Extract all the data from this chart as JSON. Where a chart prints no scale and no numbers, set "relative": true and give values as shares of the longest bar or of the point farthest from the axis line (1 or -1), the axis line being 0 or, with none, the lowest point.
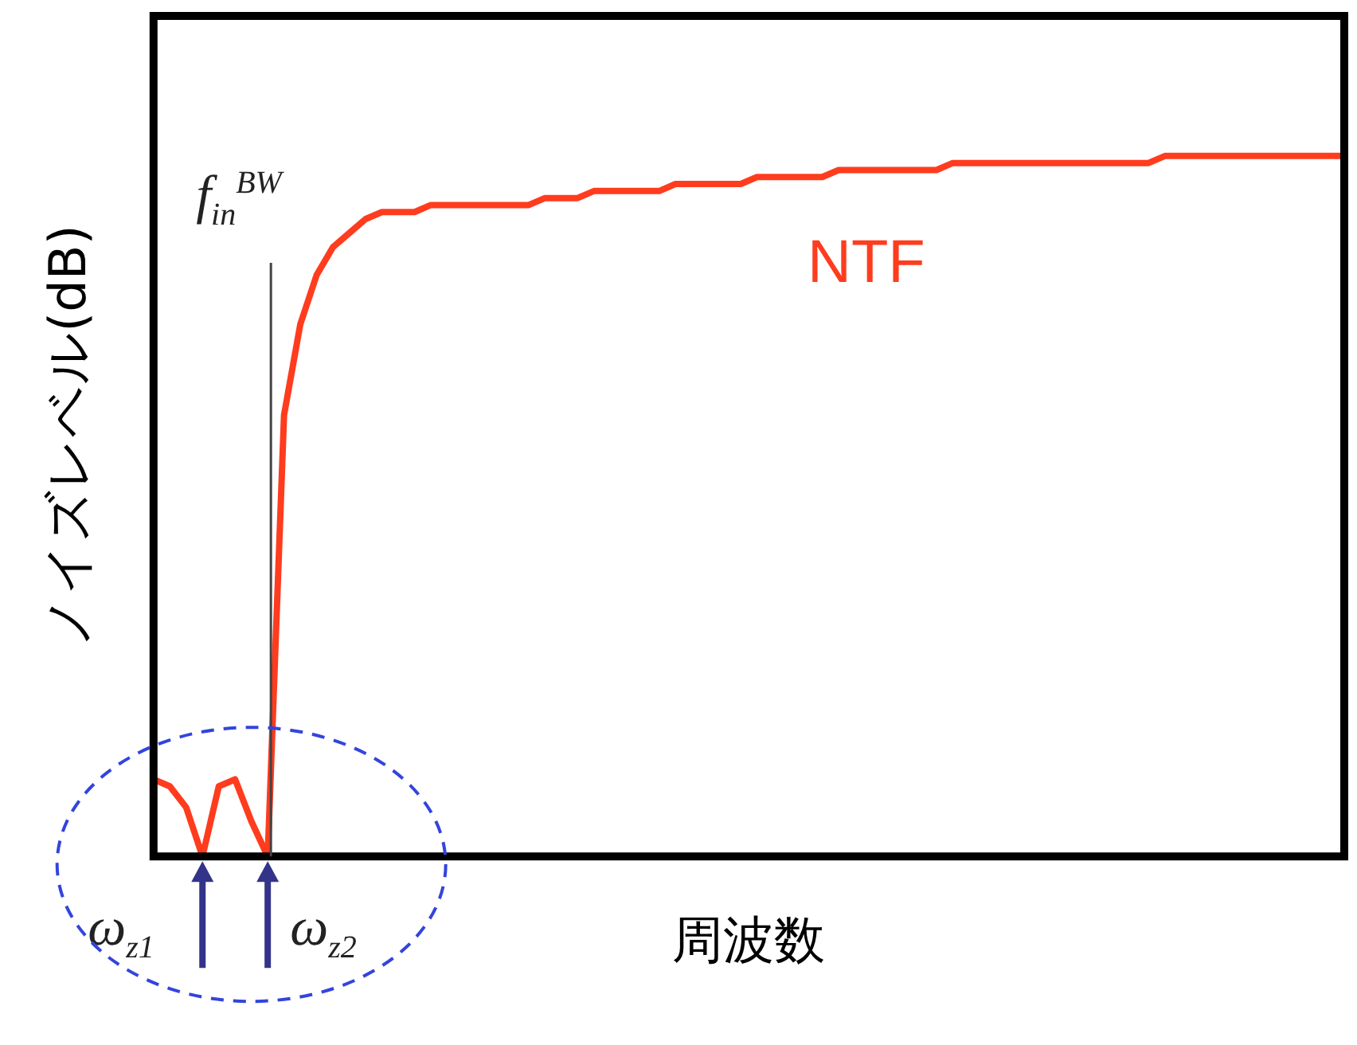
{
  "chart_data": {
    "type": "line",
    "xlabel": "周波数",
    "ylabel": "ノイズレベル(dB)",
    "annotations": [
      "f$_{in}$$^{BW}$",
      "ω$_{z1}$",
      "ω$_{z2}$"
    ],
    "relative": true,
    "grid": false,
    "legend": false,
    "marker": "none",
    "line_style": "solid",
    "categories": [
      null,
      null,
      null,
      null,
      null,
      null,
      null,
      null,
      null,
      null,
      null,
      null,
      null,
      null,
      null,
      null,
      null,
      null,
      null,
      null,
      null,
      null,
      null,
      null,
      null,
      null,
      null,
      null,
      null,
      null,
      null,
      null,
      null,
      null,
      null,
      null,
      null,
      null,
      null,
      null,
      null,
      null,
      null,
      null,
      null,
      null,
      null,
      null,
      null,
      null,
      null,
      null,
      null,
      null,
      null,
      null,
      null,
      null,
      null,
      null,
      null,
      null,
      null,
      null,
      null,
      null,
      null,
      null,
      null,
      null,
      null,
      null,
      null,
      null
    ],
    "series": [
      {
        "name": "NTF",
        "color": "#ff3c1e",
        "values": [
          0.11,
          0.1,
          0.07,
          0,
          0.1,
          0.11,
          0.05,
          0,
          0.63,
          0.76,
          0.83,
          0.87,
          0.89,
          0.91,
          0.92,
          0.92,
          0.92,
          0.93,
          0.93,
          0.93,
          0.93,
          0.93,
          0.93,
          0.93,
          0.94,
          0.94,
          0.94,
          0.95,
          0.95,
          0.95,
          0.95,
          0.95,
          0.96,
          0.96,
          0.96,
          0.96,
          0.96,
          0.97,
          0.97,
          0.97,
          0.97,
          0.97,
          0.98,
          0.98,
          0.98,
          0.98,
          0.98,
          0.98,
          0.98,
          0.99,
          0.99,
          0.99,
          0.99,
          0.99,
          0.99,
          0.99,
          0.99,
          0.99,
          0.99,
          0.99,
          0.99,
          0.99,
          1,
          1,
          1,
          1,
          1,
          1,
          1,
          1,
          1,
          1,
          1,
          1
        ]
      }
    ]
  }
}
